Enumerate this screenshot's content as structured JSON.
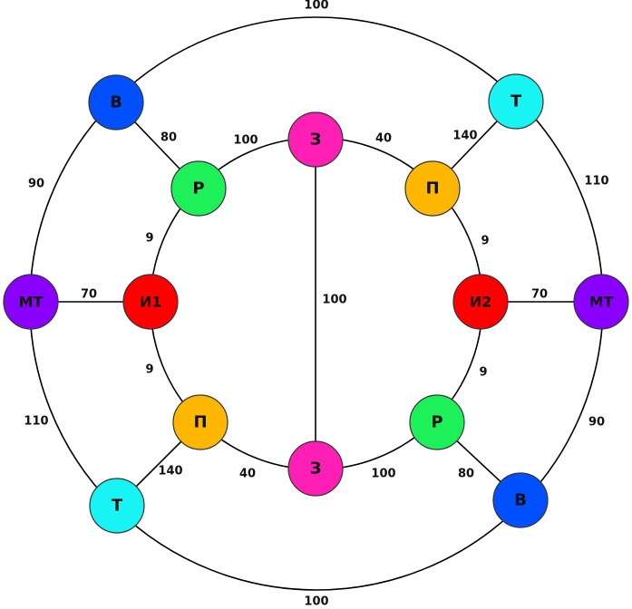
{
  "colors": {
    "blue": "#0050ff",
    "green": "#1ef05a",
    "magenta": "#ff1fb4",
    "orange": "#ffb700",
    "cyan": "#18f3f3",
    "purple": "#8a00ff",
    "red": "#ff0000"
  },
  "nodes": [
    {
      "id": "B_top",
      "label": "В",
      "color": "blue"
    },
    {
      "id": "T_top",
      "label": "Т",
      "color": "cyan"
    },
    {
      "id": "MT_left",
      "label": "МТ",
      "color": "purple"
    },
    {
      "id": "MT_right",
      "label": "МТ",
      "color": "purple"
    },
    {
      "id": "T_bottom",
      "label": "Т",
      "color": "cyan"
    },
    {
      "id": "B_bottom",
      "label": "В",
      "color": "blue"
    },
    {
      "id": "R_top",
      "label": "Р",
      "color": "green"
    },
    {
      "id": "Z_top",
      "label": "З",
      "color": "magenta"
    },
    {
      "id": "P_top",
      "label": "П",
      "color": "orange"
    },
    {
      "id": "I1",
      "label": "И1",
      "color": "red"
    },
    {
      "id": "I2",
      "label": "И2",
      "color": "red"
    },
    {
      "id": "P_bottom",
      "label": "П",
      "color": "orange"
    },
    {
      "id": "Z_bottom",
      "label": "З",
      "color": "magenta"
    },
    {
      "id": "R_bottom",
      "label": "Р",
      "color": "green"
    }
  ],
  "edges": [
    {
      "from": "B_top",
      "to": "T_top",
      "weight": "100",
      "outer": true
    },
    {
      "from": "B_top",
      "to": "MT_left",
      "weight": "90",
      "outer": true
    },
    {
      "from": "T_top",
      "to": "MT_right",
      "weight": "110",
      "outer": true
    },
    {
      "from": "MT_left",
      "to": "T_bottom",
      "weight": "110",
      "outer": true
    },
    {
      "from": "MT_right",
      "to": "B_bottom",
      "weight": "90",
      "outer": true
    },
    {
      "from": "T_bottom",
      "to": "B_bottom",
      "weight": "100",
      "outer": true
    },
    {
      "from": "B_top",
      "to": "R_top",
      "weight": "80"
    },
    {
      "from": "T_top",
      "to": "P_top",
      "weight": "140"
    },
    {
      "from": "MT_left",
      "to": "I1",
      "weight": "70"
    },
    {
      "from": "MT_right",
      "to": "I2",
      "weight": "70"
    },
    {
      "from": "T_bottom",
      "to": "P_bottom",
      "weight": "140"
    },
    {
      "from": "B_bottom",
      "to": "R_bottom",
      "weight": "80"
    },
    {
      "from": "R_top",
      "to": "Z_top",
      "weight": "100",
      "inner": true
    },
    {
      "from": "Z_top",
      "to": "P_top",
      "weight": "40",
      "inner": true
    },
    {
      "from": "R_top",
      "to": "I1",
      "weight": "9",
      "inner": true
    },
    {
      "from": "P_top",
      "to": "I2",
      "weight": "9",
      "inner": true
    },
    {
      "from": "I1",
      "to": "P_bottom",
      "weight": "9",
      "inner": true
    },
    {
      "from": "I2",
      "to": "R_bottom",
      "weight": "9",
      "inner": true
    },
    {
      "from": "P_bottom",
      "to": "Z_bottom",
      "weight": "40",
      "inner": true
    },
    {
      "from": "Z_bottom",
      "to": "R_bottom",
      "weight": "100",
      "inner": true
    },
    {
      "from": "Z_top",
      "to": "Z_bottom",
      "weight": "100"
    }
  ]
}
